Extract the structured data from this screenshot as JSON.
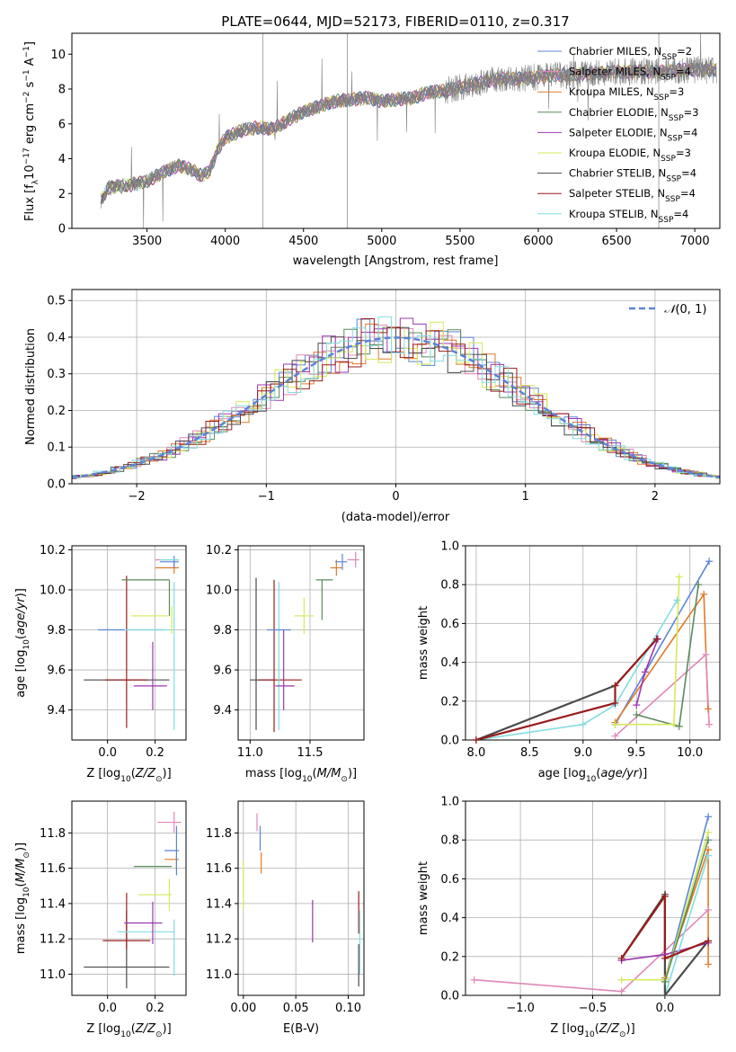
{
  "figure_title": "PLATE=0644, MJD=52173, FIBERID=0110, z=0.317",
  "colors": {
    "Chabrier MILES": "#5b84d6",
    "Salpeter MILES": "#e087b8",
    "Kroupa MILES": "#e07a28",
    "Chabrier ELODIE": "#5a8a5a",
    "Salpeter ELODIE": "#9b38b0",
    "Kroupa ELODIE": "#d6e85a",
    "Chabrier STELIB": "#4a4a4a",
    "Salpeter STELIB": "#9a1c1c",
    "Kroupa STELIB": "#82dce0",
    "data": "#808080",
    "gaussian": "#5b84d6",
    "grid": "#b0b0b0"
  },
  "chart_data": [
    {
      "type": "line",
      "id": "spectrum",
      "title": "PLATE=0644, MJD=52173, FIBERID=0110, z=0.317",
      "xlabel": "wavelength [Angstrom, rest frame]",
      "ylabel": "Flux [fλ10⁻¹⁷ erg cm⁻² s⁻¹ A⁻¹]",
      "xlim": [
        3020,
        7160
      ],
      "ylim": [
        0,
        11.2
      ],
      "xticks": [
        "3500",
        "4000",
        "4500",
        "5000",
        "5500",
        "6000",
        "6500",
        "7000"
      ],
      "yticks": [
        "0",
        "2",
        "4",
        "6",
        "8",
        "10"
      ],
      "grid": false,
      "legend_position": "top-right",
      "legend": [
        {
          "label": "Chabrier MILES, N",
          "sub": "SSP",
          "tail": "=2"
        },
        {
          "label": "Salpeter MILES, N",
          "sub": "SSP",
          "tail": "=4"
        },
        {
          "label": "Kroupa MILES, N",
          "sub": "SSP",
          "tail": "=3"
        },
        {
          "label": "Chabrier ELODIE, N",
          "sub": "SSP",
          "tail": "=3"
        },
        {
          "label": "Salpeter ELODIE, N",
          "sub": "SSP",
          "tail": "=4"
        },
        {
          "label": "Kroupa ELODIE, N",
          "sub": "SSP",
          "tail": "=3"
        },
        {
          "label": "Chabrier STELIB, N",
          "sub": "SSP",
          "tail": "=4"
        },
        {
          "label": "Salpeter STELIB, N",
          "sub": "SSP",
          "tail": "=4"
        },
        {
          "label": "Kroupa STELIB, N",
          "sub": "SSP",
          "tail": "=4"
        }
      ],
      "continuum_x": [
        3205,
        3250,
        3300,
        3400,
        3500,
        3600,
        3700,
        3780,
        3850,
        3900,
        3950,
        4000,
        4100,
        4200,
        4300,
        4400,
        4500,
        4600,
        4700,
        4800,
        4900,
        5000,
        5100,
        5200,
        5300,
        5400,
        5500,
        5600,
        5700,
        5800,
        5900,
        6000,
        6100,
        6200,
        6300,
        6400,
        6500,
        6600,
        6700,
        6800,
        6900,
        7000,
        7140
      ],
      "continuum_y": [
        1.6,
        2.3,
        2.4,
        2.5,
        2.7,
        3.2,
        3.6,
        3.4,
        3.0,
        3.3,
        4.5,
        5.2,
        5.6,
        5.8,
        5.7,
        6.2,
        6.7,
        7.0,
        7.3,
        7.4,
        7.5,
        7.3,
        7.4,
        7.5,
        7.8,
        7.9,
        8.1,
        8.3,
        8.5,
        8.6,
        8.6,
        8.7,
        8.8,
        8.8,
        8.9,
        8.9,
        9.0,
        9.0,
        9.0,
        9.0,
        9.1,
        9.1,
        9.1
      ]
    },
    {
      "type": "line",
      "id": "residuals",
      "xlabel": "(data-model)/error",
      "ylabel": "Normed distribution",
      "xlim": [
        -2.5,
        2.5
      ],
      "ylim": [
        0,
        0.53
      ],
      "xticks": [
        "−2",
        "−1",
        "0",
        "1",
        "2"
      ],
      "yticks": [
        "0.0",
        "0.1",
        "0.2",
        "0.3",
        "0.4",
        "0.5"
      ],
      "grid": true,
      "legend": [
        {
          "label": "𝒩(0, 1)"
        }
      ],
      "series": [
        {
          "name": "𝒩(0, 1)",
          "mean": 0,
          "sigma": 1
        }
      ]
    },
    {
      "type": "scatter",
      "id": "age_vs_Z",
      "xlabel": "Z [log₁₀(Z/Z⊙)]",
      "ylabel": "age  [log₁₀(age/yr)]",
      "xlim": [
        -0.15,
        0.33
      ],
      "ylim": [
        9.25,
        10.22
      ],
      "xticks": [
        "0.0",
        "0.2"
      ],
      "yticks": [
        "9.4",
        "9.6",
        "9.8",
        "10.0",
        "10.2"
      ],
      "grid": true,
      "points": [
        {
          "m": "Chabrier STELIB",
          "x": 0.08,
          "xerr": 0.18,
          "y": 9.55,
          "yerr": 0.0
        },
        {
          "m": "Salpeter STELIB",
          "x": 0.08,
          "xerr": 0.09,
          "y": 9.55,
          "yerr": 0.0
        },
        {
          "m": "Salpeter STELIB",
          "x": 0.08,
          "xerr": 0.0,
          "y": 9.69,
          "yerr": 0.38
        },
        {
          "m": "Salpeter ELODIE",
          "x": 0.18,
          "xerr": 0.07,
          "y": 9.52,
          "yerr": 0.0
        },
        {
          "m": "Salpeter ELODIE",
          "x": 0.19,
          "xerr": 0.0,
          "y": 9.57,
          "yerr": 0.17
        },
        {
          "m": "Chabrier MILES",
          "x": 0.1,
          "xerr": 0.14,
          "y": 9.8,
          "yerr": 0.0
        },
        {
          "m": "Kroupa STELIB",
          "x": 0.17,
          "xerr": 0.1,
          "y": 9.8,
          "yerr": 0.0
        },
        {
          "m": "Kroupa STELIB",
          "x": 0.28,
          "xerr": 0.0,
          "y": 9.67,
          "yerr": 0.37
        },
        {
          "m": "Kroupa ELODIE",
          "x": 0.18,
          "xerr": 0.08,
          "y": 9.87,
          "yerr": 0.0
        },
        {
          "m": "Kroupa ELODIE",
          "x": 0.27,
          "xerr": 0.0,
          "y": 9.85,
          "yerr": 0.07
        },
        {
          "m": "Chabrier ELODIE",
          "x": 0.16,
          "xerr": 0.1,
          "y": 10.05,
          "yerr": 0.0
        },
        {
          "m": "Chabrier ELODIE",
          "x": 0.26,
          "xerr": 0.0,
          "y": 9.96,
          "yerr": 0.09
        },
        {
          "m": "Kroupa MILES",
          "x": 0.25,
          "xerr": 0.05,
          "y": 10.11,
          "yerr": 0.0
        },
        {
          "m": "Kroupa MILES",
          "x": 0.28,
          "xerr": 0.0,
          "y": 10.11,
          "yerr": 0.03
        },
        {
          "m": "Salpeter MILES",
          "x": 0.25,
          "xerr": 0.05,
          "y": 10.15,
          "yerr": 0.0
        },
        {
          "m": "Chabrier MILES",
          "x": 0.26,
          "xerr": 0.04,
          "y": 10.14,
          "yerr": 0.0
        },
        {
          "m": "Chabrier MILES",
          "x": 0.28,
          "xerr": 0.0,
          "y": 10.14,
          "yerr": 0.03
        },
        {
          "m": "Kroupa STELIB",
          "x": 0.26,
          "xerr": 0.04,
          "y": 10.15,
          "yerr": 0.0
        }
      ]
    },
    {
      "type": "scatter",
      "id": "age_vs_mass",
      "xlabel": "mass [log₁₀(M/M⊙)]",
      "xlim": [
        10.9,
        11.95
      ],
      "ylim": [
        9.25,
        10.22
      ],
      "xticks": [
        "11.0",
        "11.5"
      ],
      "yticks": [
        "9.4",
        "9.6",
        "9.8",
        "10.0",
        "10.2"
      ],
      "grid": true,
      "points": [
        {
          "m": "Chabrier STELIB",
          "x": 11.1,
          "xerr": 0.1,
          "y": 9.55,
          "yerr": 0.0
        },
        {
          "m": "Chabrier STELIB",
          "x": 11.05,
          "xerr": 0.0,
          "y": 9.68,
          "yerr": 0.38
        },
        {
          "m": "Salpeter STELIB",
          "x": 11.25,
          "xerr": 0.18,
          "y": 9.55,
          "yerr": 0.0
        },
        {
          "m": "Salpeter STELIB",
          "x": 11.2,
          "xerr": 0.0,
          "y": 9.67,
          "yerr": 0.38
        },
        {
          "m": "Kroupa STELIB",
          "x": 11.24,
          "xerr": 0.0,
          "y": 9.67,
          "yerr": 0.37
        },
        {
          "m": "Salpeter ELODIE",
          "x": 11.29,
          "xerr": 0.08,
          "y": 9.52,
          "yerr": 0.0
        },
        {
          "m": "Salpeter ELODIE",
          "x": 11.28,
          "xerr": 0.0,
          "y": 9.6,
          "yerr": 0.2
        },
        {
          "m": "Chabrier MILES",
          "x": 11.24,
          "xerr": 0.1,
          "y": 9.8,
          "yerr": 0.0
        },
        {
          "m": "Kroupa ELODIE",
          "x": 11.45,
          "xerr": 0.08,
          "y": 9.87,
          "yerr": 0.0
        },
        {
          "m": "Kroupa ELODIE",
          "x": 11.45,
          "xerr": 0.0,
          "y": 9.87,
          "yerr": 0.09
        },
        {
          "m": "Chabrier ELODIE",
          "x": 11.62,
          "xerr": 0.07,
          "y": 10.05,
          "yerr": 0.0
        },
        {
          "m": "Chabrier ELODIE",
          "x": 11.6,
          "xerr": 0.0,
          "y": 9.95,
          "yerr": 0.1
        },
        {
          "m": "Kroupa MILES",
          "x": 11.72,
          "xerr": 0.05,
          "y": 10.11,
          "yerr": 0.0
        },
        {
          "m": "Kroupa MILES",
          "x": 11.72,
          "xerr": 0.0,
          "y": 10.11,
          "yerr": 0.04
        },
        {
          "m": "Chabrier MILES",
          "x": 11.76,
          "xerr": 0.05,
          "y": 10.14,
          "yerr": 0.0
        },
        {
          "m": "Chabrier MILES",
          "x": 11.77,
          "xerr": 0.0,
          "y": 10.14,
          "yerr": 0.04
        },
        {
          "m": "Salpeter MILES",
          "x": 11.86,
          "xerr": 0.05,
          "y": 10.15,
          "yerr": 0.0
        },
        {
          "m": "Salpeter MILES",
          "x": 11.88,
          "xerr": 0.0,
          "y": 10.15,
          "yerr": 0.04
        }
      ]
    },
    {
      "type": "line",
      "id": "weight_vs_age",
      "xlabel": "age  [log₁₀(age/yr)]",
      "ylabel": "mass weight",
      "xlim": [
        7.9,
        10.28
      ],
      "ylim": [
        0,
        1.0
      ],
      "xticks": [
        "8.0",
        "8.5",
        "9.0",
        "9.5",
        "10.0"
      ],
      "yticks": [
        "0.0",
        "0.2",
        "0.4",
        "0.6",
        "0.8",
        "1.0"
      ],
      "grid": true,
      "series": [
        {
          "name": "Chabrier MILES",
          "x": [
            9.3,
            10.18
          ],
          "y": [
            0.08,
            0.92
          ]
        },
        {
          "name": "Kroupa MILES",
          "x": [
            9.3,
            10.13,
            10.17
          ],
          "y": [
            0.09,
            0.75,
            0.16
          ]
        },
        {
          "name": "Salpeter MILES",
          "x": [
            9.3,
            10.15,
            10.18
          ],
          "y": [
            0.02,
            0.44,
            0.08
          ]
        },
        {
          "name": "Chabrier ELODIE",
          "x": [
            9.5,
            9.9,
            10.08
          ],
          "y": [
            0.13,
            0.07,
            0.8
          ]
        },
        {
          "name": "Salpeter ELODIE",
          "x": [
            9.5,
            9.58,
            9.7
          ],
          "y": [
            0.18,
            0.35,
            0.52
          ]
        },
        {
          "name": "Kroupa ELODIE",
          "x": [
            9.3,
            9.85,
            9.9
          ],
          "y": [
            0.08,
            0.08,
            0.84
          ]
        },
        {
          "name": "Kroupa STELIB",
          "x": [
            8.0,
            9.0,
            9.3,
            9.88
          ],
          "y": [
            0.0,
            0.08,
            0.18,
            0.72
          ]
        },
        {
          "name": "Chabrier STELIB",
          "x": [
            8.0,
            9.3,
            9.69
          ],
          "y": [
            0.0,
            0.28,
            0.52
          ]
        },
        {
          "name": "Salpeter STELIB",
          "x": [
            8.0,
            9.3,
            9.3,
            9.69
          ],
          "y": [
            0.0,
            0.19,
            0.28,
            0.52
          ]
        }
      ]
    },
    {
      "type": "scatter",
      "id": "mass_vs_Z",
      "xlabel": "Z [log₁₀(Z/Z⊙)]",
      "ylabel": "mass [log₁₀(M/M⊙)]",
      "xlim": [
        -0.15,
        0.33
      ],
      "ylim": [
        10.88,
        11.98
      ],
      "xticks": [
        "0.0",
        "0.2"
      ],
      "yticks": [
        "11.0",
        "11.2",
        "11.4",
        "11.6",
        "11.8"
      ],
      "grid": true,
      "points": [
        {
          "m": "Chabrier STELIB",
          "x": 0.08,
          "xerr": 0.18,
          "y": 11.04,
          "yerr": 0.0
        },
        {
          "m": "Chabrier STELIB",
          "x": 0.08,
          "xerr": 0.0,
          "y": 11.14,
          "yerr": 0.22
        },
        {
          "m": "Salpeter STELIB",
          "x": 0.08,
          "xerr": 0.1,
          "y": 11.19,
          "yerr": 0.0
        },
        {
          "m": "Salpeter STELIB",
          "x": 0.08,
          "xerr": 0.0,
          "y": 11.3,
          "yerr": 0.16
        },
        {
          "m": "Kroupa STELIB",
          "x": 0.16,
          "xerr": 0.12,
          "y": 11.24,
          "yerr": 0.0
        },
        {
          "m": "Kroupa STELIB",
          "x": 0.28,
          "xerr": 0.0,
          "y": 11.15,
          "yerr": 0.16
        },
        {
          "m": "Salpeter ELODIE",
          "x": 0.15,
          "xerr": 0.08,
          "y": 11.29,
          "yerr": 0.0
        },
        {
          "m": "Salpeter ELODIE",
          "x": 0.19,
          "xerr": 0.0,
          "y": 11.29,
          "yerr": 0.12
        },
        {
          "m": "Kroupa ELODIE",
          "x": 0.2,
          "xerr": 0.07,
          "y": 11.45,
          "yerr": 0.0
        },
        {
          "m": "Kroupa ELODIE",
          "x": 0.26,
          "xerr": 0.0,
          "y": 11.45,
          "yerr": 0.09
        },
        {
          "m": "Chabrier ELODIE",
          "x": 0.19,
          "xerr": 0.08,
          "y": 11.61,
          "yerr": 0.0
        },
        {
          "m": "Kroupa MILES",
          "x": 0.27,
          "xerr": 0.03,
          "y": 11.65,
          "yerr": 0.0
        },
        {
          "m": "Kroupa MILES",
          "x": 0.29,
          "xerr": 0.0,
          "y": 11.63,
          "yerr": 0.04
        },
        {
          "m": "Chabrier MILES",
          "x": 0.27,
          "xerr": 0.03,
          "y": 11.7,
          "yerr": 0.0
        },
        {
          "m": "Chabrier MILES",
          "x": 0.29,
          "xerr": 0.0,
          "y": 11.7,
          "yerr": 0.14
        },
        {
          "m": "Salpeter MILES",
          "x": 0.26,
          "xerr": 0.05,
          "y": 11.86,
          "yerr": 0.0
        },
        {
          "m": "Salpeter MILES",
          "x": 0.28,
          "xerr": 0.0,
          "y": 11.86,
          "yerr": 0.06
        }
      ]
    },
    {
      "type": "scatter",
      "id": "mass_vs_ebv",
      "xlabel": "E(B-V)",
      "xlim": [
        -0.005,
        0.115
      ],
      "ylim": [
        10.88,
        11.98
      ],
      "xticks": [
        "0.00",
        "0.05",
        "0.10"
      ],
      "yticks": [
        "11.0",
        "11.2",
        "11.4",
        "11.6",
        "11.8"
      ],
      "grid": true,
      "points": [
        {
          "m": "Salpeter MILES",
          "x": 0.013,
          "xerr": 0.0,
          "y": 11.86,
          "yerr": 0.05
        },
        {
          "m": "Chabrier MILES",
          "x": 0.016,
          "xerr": 0.0,
          "y": 11.77,
          "yerr": 0.07
        },
        {
          "m": "Kroupa MILES",
          "x": 0.017,
          "xerr": 0.0,
          "y": 11.63,
          "yerr": 0.06
        },
        {
          "m": "Kroupa ELODIE",
          "x": 0.0,
          "xerr": 0.0,
          "y": 11.51,
          "yerr": 0.14
        },
        {
          "m": "Salpeter ELODIE",
          "x": 0.066,
          "xerr": 0.0,
          "y": 11.3,
          "yerr": 0.12
        },
        {
          "m": "Salpeter STELIB",
          "x": 0.11,
          "xerr": 0.0,
          "y": 11.35,
          "yerr": 0.12
        },
        {
          "m": "Kroupa STELIB",
          "x": 0.111,
          "xerr": 0.0,
          "y": 11.18,
          "yerr": 0.18
        },
        {
          "m": "Chabrier STELIB",
          "x": 0.11,
          "xerr": 0.0,
          "y": 11.05,
          "yerr": 0.12
        }
      ]
    },
    {
      "type": "line",
      "id": "weight_vs_Z",
      "xlabel": "Z [log₁₀(Z/Z⊙)]",
      "ylabel": "mass weight",
      "xlim": [
        -1.38,
        0.38
      ],
      "ylim": [
        0,
        1.0
      ],
      "xticks": [
        "−1.0",
        "−0.5",
        "0.0"
      ],
      "yticks": [
        "0.0",
        "0.2",
        "0.4",
        "0.6",
        "0.8",
        "1.0"
      ],
      "grid": true,
      "series": [
        {
          "name": "Salpeter MILES",
          "x": [
            -1.32,
            -0.3,
            0.3
          ],
          "y": [
            0.08,
            0.02,
            0.44
          ]
        },
        {
          "name": "Chabrier MILES",
          "x": [
            0.0,
            0.3
          ],
          "y": [
            0.08,
            0.92
          ]
        },
        {
          "name": "Kroupa MILES",
          "x": [
            0.0,
            0.3,
            0.3
          ],
          "y": [
            0.09,
            0.75,
            0.16
          ]
        },
        {
          "name": "Kroupa ELODIE",
          "x": [
            -0.3,
            0.0,
            0.3
          ],
          "y": [
            0.08,
            0.08,
            0.84
          ]
        },
        {
          "name": "Salpeter ELODIE",
          "x": [
            -0.3,
            0.0,
            0.3
          ],
          "y": [
            0.18,
            0.21,
            0.27
          ]
        },
        {
          "name": "Chabrier ELODIE",
          "x": [
            0.0,
            0.3
          ],
          "y": [
            0.07,
            0.8
          ]
        },
        {
          "name": "Kroupa STELIB",
          "x": [
            0.0,
            0.3
          ],
          "y": [
            0.0,
            0.72
          ]
        },
        {
          "name": "Chabrier STELIB",
          "x": [
            -0.3,
            0.0,
            0.0,
            0.3
          ],
          "y": [
            0.19,
            0.52,
            0.0,
            0.28
          ]
        },
        {
          "name": "Salpeter STELIB",
          "x": [
            -0.3,
            0.0,
            0.0,
            0.3
          ],
          "y": [
            0.19,
            0.51,
            0.19,
            0.28
          ]
        }
      ]
    }
  ]
}
